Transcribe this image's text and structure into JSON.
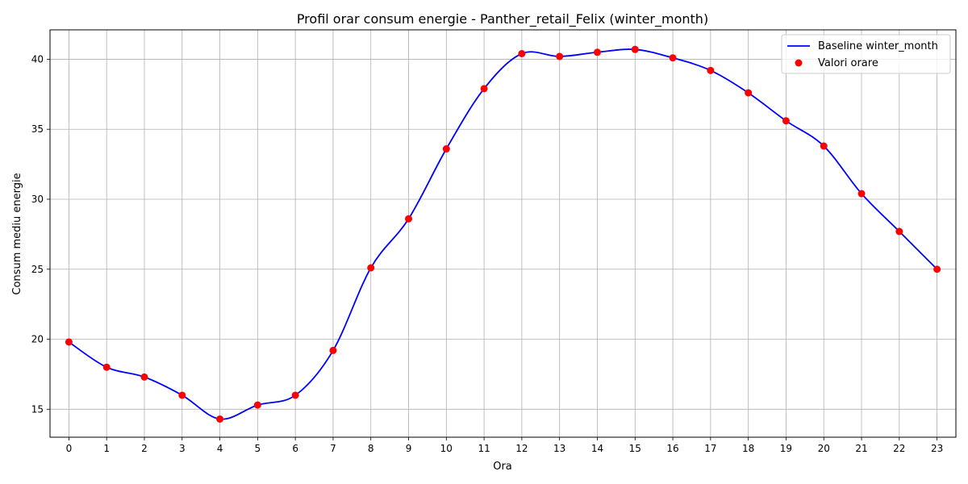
{
  "chart_data": {
    "type": "line",
    "title": "Profil orar consum energie - Panther_retail_Felix (winter_month)",
    "xlabel": "Ora",
    "ylabel": "Consum mediu energie",
    "x": [
      0,
      1,
      2,
      3,
      4,
      5,
      6,
      7,
      8,
      9,
      10,
      11,
      12,
      13,
      14,
      15,
      16,
      17,
      18,
      19,
      20,
      21,
      22,
      23
    ],
    "xlim": [
      -0.5,
      23.5
    ],
    "ylim": [
      13.0,
      42.1
    ],
    "yticks": [
      15,
      20,
      25,
      30,
      35,
      40
    ],
    "grid": true,
    "legend_position": "top-right",
    "series": [
      {
        "name": "Baseline winter_month",
        "kind": "smooth-line",
        "color": "#0000ff",
        "values": [
          19.8,
          18.0,
          17.3,
          16.0,
          14.3,
          15.3,
          16.0,
          19.2,
          25.1,
          28.6,
          33.6,
          37.9,
          40.4,
          40.2,
          40.5,
          40.7,
          40.1,
          39.2,
          37.6,
          35.6,
          33.8,
          30.4,
          27.7,
          25.0
        ]
      },
      {
        "name": "Valori orare",
        "kind": "scatter",
        "color": "#ff0000",
        "values": [
          19.8,
          18.0,
          17.3,
          16.0,
          14.3,
          15.3,
          16.0,
          19.2,
          25.1,
          28.6,
          33.6,
          37.9,
          40.4,
          40.2,
          40.5,
          40.7,
          40.1,
          39.2,
          37.6,
          35.6,
          33.8,
          30.4,
          27.7,
          25.0
        ]
      }
    ]
  }
}
